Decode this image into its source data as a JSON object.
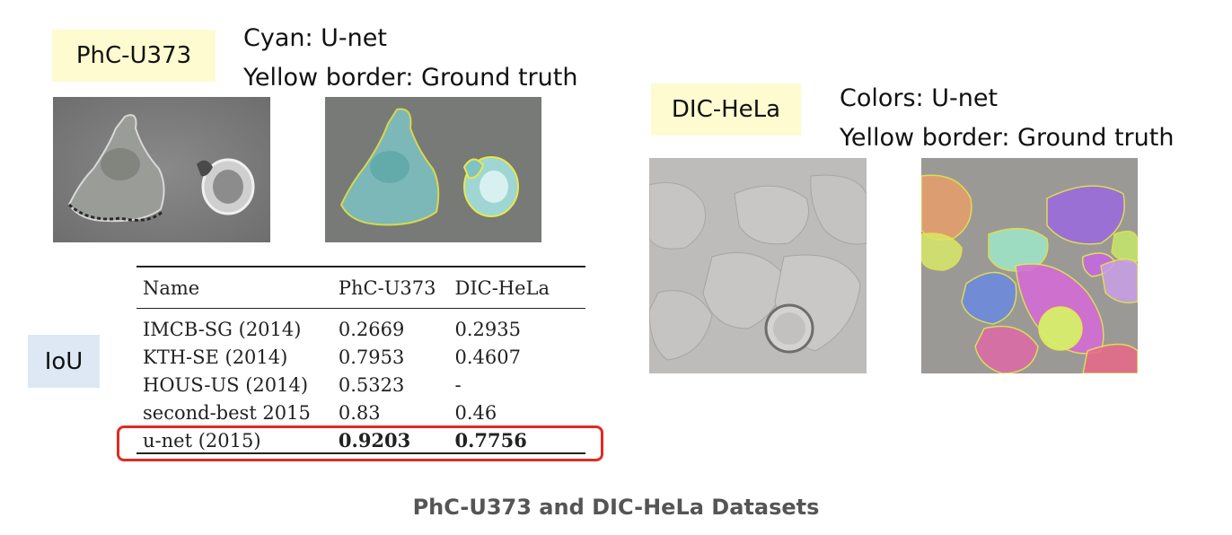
{
  "phc": {
    "label": "PhC-U373",
    "caption_line1": "Cyan: U-net",
    "caption_line2": "Yellow border: Ground truth"
  },
  "dic": {
    "label": "DIC-HeLa",
    "caption_line1": "Colors: U-net",
    "caption_line2": "Yellow border: Ground truth"
  },
  "metric_label": "IoU",
  "table": {
    "headers": [
      "Name",
      "PhC-U373",
      "DIC-HeLa"
    ],
    "rows": [
      [
        "IMCB-SG (2014)",
        "0.2669",
        "0.2935"
      ],
      [
        "KTH-SE (2014)",
        "0.7953",
        "0.4607"
      ],
      [
        "HOUS-US (2014)",
        "0.5323",
        "-"
      ],
      [
        "second-best 2015",
        "0.83",
        "0.46"
      ],
      [
        "u-net (2015)",
        "0.9203",
        "0.7756"
      ]
    ]
  },
  "colors": {
    "highlight": "#e02b22",
    "label_bg": "#fffbd0",
    "iou_bg": "#dde8f4"
  },
  "footer": "PhC-U373 and DIC-HeLa Datasets"
}
